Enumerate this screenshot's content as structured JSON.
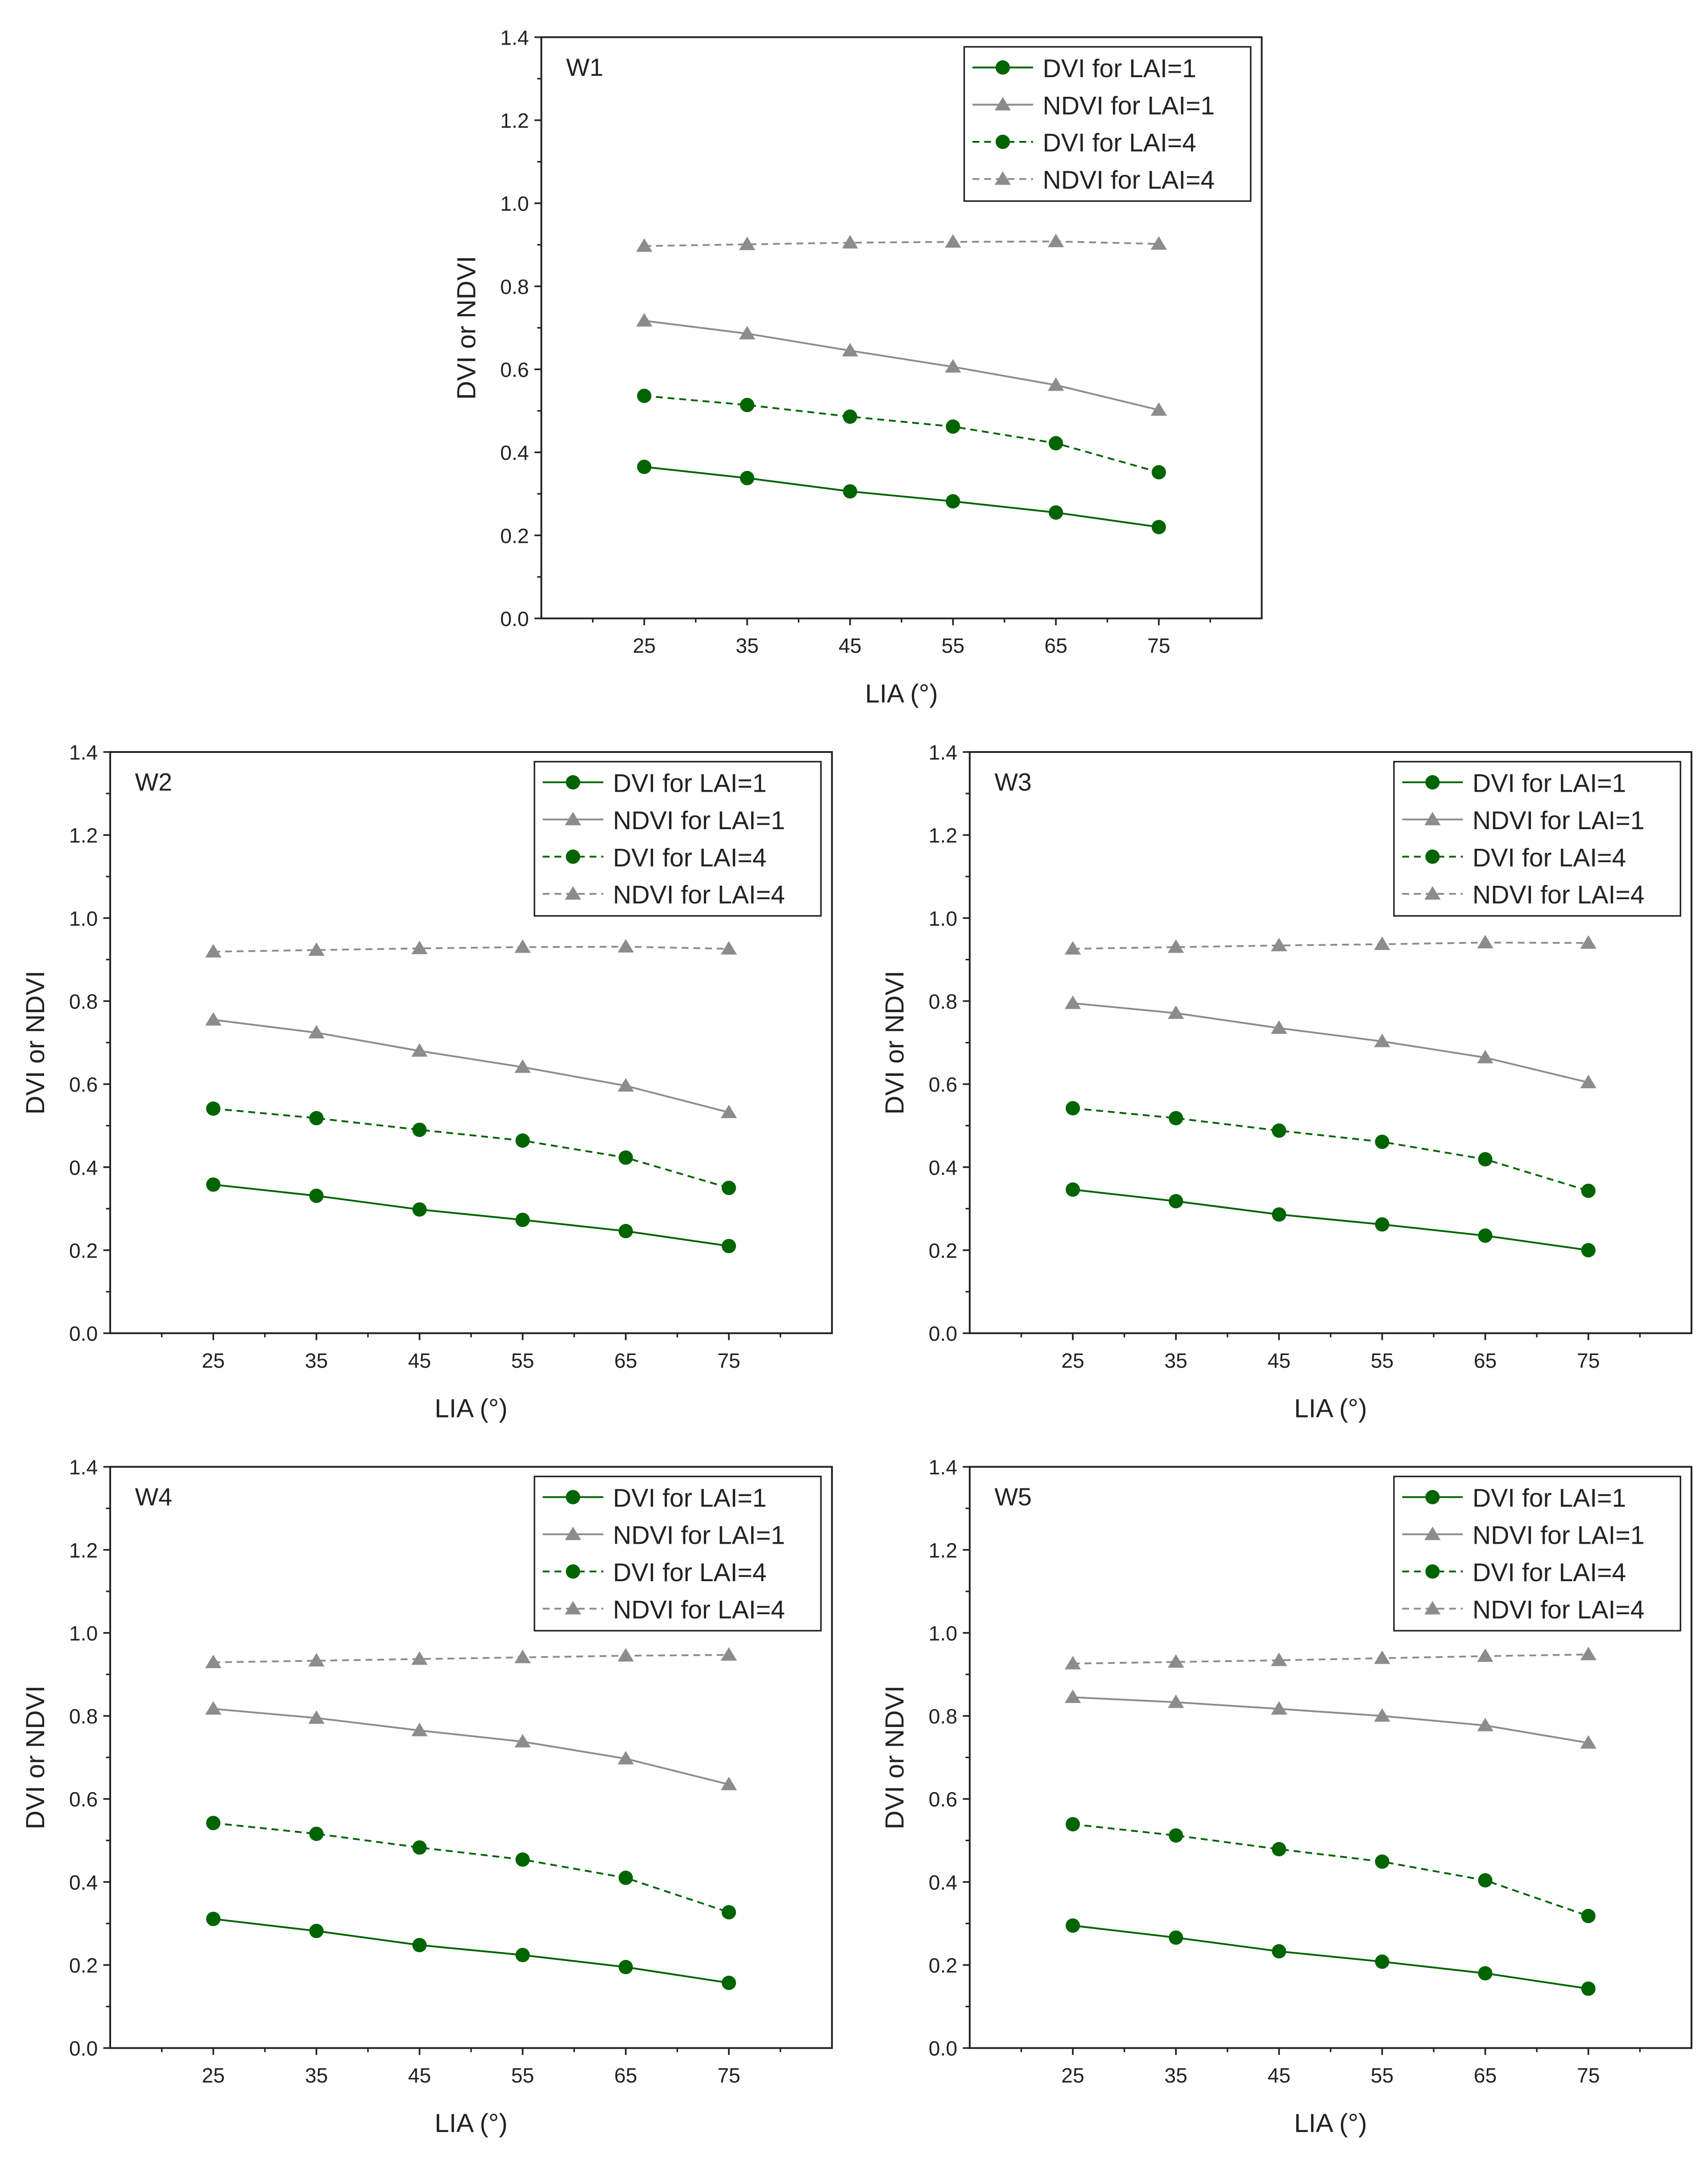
{
  "colors": {
    "dvi": "#006400",
    "ndvi": "#8c8c8c",
    "axis": "#222222"
  },
  "chart_data": [
    {
      "type": "line",
      "panel_label": "W1",
      "xlabel": "LIA (°)",
      "ylabel": "DVI or NDVI",
      "x": [
        25,
        35,
        45,
        55,
        65,
        75
      ],
      "xlim": [
        15,
        85
      ],
      "ylim": [
        0.0,
        1.4
      ],
      "xticks": [
        "25",
        "35",
        "45",
        "55",
        "65",
        "75"
      ],
      "yticks": [
        "0.0",
        "0.2",
        "0.4",
        "0.6",
        "0.8",
        "1.0",
        "1.2",
        "1.4"
      ],
      "legend_position": "top-right",
      "series": [
        {
          "name": "DVI for LAI=1",
          "values": [
            0.365,
            0.338,
            0.306,
            0.282,
            0.255,
            0.22
          ],
          "line": "solid",
          "marker": "circle",
          "color": "#006400"
        },
        {
          "name": "NDVI for LAI=1",
          "values": [
            0.717,
            0.686,
            0.645,
            0.606,
            0.562,
            0.502
          ],
          "line": "solid",
          "marker": "triangle",
          "color": "#8c8c8c"
        },
        {
          "name": "DVI for LAI=4",
          "values": [
            0.536,
            0.514,
            0.486,
            0.462,
            0.422,
            0.352
          ],
          "line": "dashed",
          "marker": "circle",
          "color": "#006400"
        },
        {
          "name": "NDVI for LAI=4",
          "values": [
            0.897,
            0.901,
            0.905,
            0.907,
            0.908,
            0.902
          ],
          "line": "dashed",
          "marker": "triangle",
          "color": "#8c8c8c"
        }
      ]
    },
    {
      "type": "line",
      "panel_label": "W2",
      "xlabel": "LIA (°)",
      "ylabel": "DVI or NDVI",
      "x": [
        25,
        35,
        45,
        55,
        65,
        75
      ],
      "xlim": [
        15,
        85
      ],
      "ylim": [
        0.0,
        1.4
      ],
      "xticks": [
        "25",
        "35",
        "45",
        "55",
        "65",
        "75"
      ],
      "yticks": [
        "0.0",
        "0.2",
        "0.4",
        "0.6",
        "0.8",
        "1.0",
        "1.2",
        "1.4"
      ],
      "legend_position": "top-right",
      "series": [
        {
          "name": "DVI for LAI=1",
          "values": [
            0.358,
            0.331,
            0.298,
            0.273,
            0.246,
            0.21
          ],
          "line": "solid",
          "marker": "circle",
          "color": "#006400"
        },
        {
          "name": "NDVI for LAI=1",
          "values": [
            0.755,
            0.724,
            0.68,
            0.641,
            0.596,
            0.532
          ],
          "line": "solid",
          "marker": "triangle",
          "color": "#8c8c8c"
        },
        {
          "name": "DVI for LAI=4",
          "values": [
            0.541,
            0.518,
            0.49,
            0.464,
            0.423,
            0.35
          ],
          "line": "dashed",
          "marker": "circle",
          "color": "#006400"
        },
        {
          "name": "NDVI for LAI=4",
          "values": [
            0.919,
            0.923,
            0.927,
            0.93,
            0.931,
            0.926
          ],
          "line": "dashed",
          "marker": "triangle",
          "color": "#8c8c8c"
        }
      ]
    },
    {
      "type": "line",
      "panel_label": "W3",
      "xlabel": "LIA (°)",
      "ylabel": "DVI or NDVI",
      "x": [
        25,
        35,
        45,
        55,
        65,
        75
      ],
      "xlim": [
        15,
        85
      ],
      "ylim": [
        0.0,
        1.4
      ],
      "xticks": [
        "25",
        "35",
        "45",
        "55",
        "65",
        "75"
      ],
      "yticks": [
        "0.0",
        "0.2",
        "0.4",
        "0.6",
        "0.8",
        "1.0",
        "1.2",
        "1.4"
      ],
      "legend_position": "top-right",
      "series": [
        {
          "name": "DVI for LAI=1",
          "values": [
            0.346,
            0.318,
            0.286,
            0.262,
            0.235,
            0.2
          ],
          "line": "solid",
          "marker": "circle",
          "color": "#006400"
        },
        {
          "name": "NDVI for LAI=1",
          "values": [
            0.795,
            0.771,
            0.735,
            0.703,
            0.664,
            0.604
          ],
          "line": "solid",
          "marker": "triangle",
          "color": "#8c8c8c"
        },
        {
          "name": "DVI for LAI=4",
          "values": [
            0.542,
            0.518,
            0.488,
            0.461,
            0.419,
            0.343
          ],
          "line": "dashed",
          "marker": "circle",
          "color": "#006400"
        },
        {
          "name": "NDVI for LAI=4",
          "values": [
            0.926,
            0.93,
            0.934,
            0.937,
            0.941,
            0.94
          ],
          "line": "dashed",
          "marker": "triangle",
          "color": "#8c8c8c"
        }
      ]
    },
    {
      "type": "line",
      "panel_label": "W4",
      "xlabel": "LIA (°)",
      "ylabel": "DVI or NDVI",
      "x": [
        25,
        35,
        45,
        55,
        65,
        75
      ],
      "xlim": [
        15,
        85
      ],
      "ylim": [
        0.0,
        1.4
      ],
      "xticks": [
        "25",
        "35",
        "45",
        "55",
        "65",
        "75"
      ],
      "yticks": [
        "0.0",
        "0.2",
        "0.4",
        "0.6",
        "0.8",
        "1.0",
        "1.2",
        "1.4"
      ],
      "legend_position": "top-right",
      "series": [
        {
          "name": "DVI for LAI=1",
          "values": [
            0.311,
            0.282,
            0.248,
            0.224,
            0.195,
            0.157
          ],
          "line": "solid",
          "marker": "circle",
          "color": "#006400"
        },
        {
          "name": "NDVI for LAI=1",
          "values": [
            0.817,
            0.795,
            0.765,
            0.738,
            0.697,
            0.635
          ],
          "line": "solid",
          "marker": "triangle",
          "color": "#8c8c8c"
        },
        {
          "name": "DVI for LAI=4",
          "values": [
            0.542,
            0.516,
            0.483,
            0.454,
            0.41,
            0.327
          ],
          "line": "dashed",
          "marker": "circle",
          "color": "#006400"
        },
        {
          "name": "NDVI for LAI=4",
          "values": [
            0.929,
            0.933,
            0.937,
            0.941,
            0.945,
            0.947
          ],
          "line": "dashed",
          "marker": "triangle",
          "color": "#8c8c8c"
        }
      ]
    },
    {
      "type": "line",
      "panel_label": "W5",
      "xlabel": "LIA (°)",
      "ylabel": "DVI or NDVI",
      "x": [
        25,
        35,
        45,
        55,
        65,
        75
      ],
      "xlim": [
        15,
        85
      ],
      "ylim": [
        0.0,
        1.4
      ],
      "xticks": [
        "25",
        "35",
        "45",
        "55",
        "65",
        "75"
      ],
      "yticks": [
        "0.0",
        "0.2",
        "0.4",
        "0.6",
        "0.8",
        "1.0",
        "1.2",
        "1.4"
      ],
      "legend_position": "top-right",
      "series": [
        {
          "name": "DVI for LAI=1",
          "values": [
            0.295,
            0.266,
            0.233,
            0.208,
            0.18,
            0.143
          ],
          "line": "solid",
          "marker": "circle",
          "color": "#006400"
        },
        {
          "name": "NDVI for LAI=1",
          "values": [
            0.845,
            0.833,
            0.817,
            0.8,
            0.777,
            0.735
          ],
          "line": "solid",
          "marker": "triangle",
          "color": "#8c8c8c"
        },
        {
          "name": "DVI for LAI=4",
          "values": [
            0.539,
            0.512,
            0.479,
            0.449,
            0.404,
            0.318
          ],
          "line": "dashed",
          "marker": "circle",
          "color": "#006400"
        },
        {
          "name": "NDVI for LAI=4",
          "values": [
            0.926,
            0.93,
            0.934,
            0.939,
            0.944,
            0.948
          ],
          "line": "dashed",
          "marker": "triangle",
          "color": "#8c8c8c"
        }
      ]
    }
  ]
}
